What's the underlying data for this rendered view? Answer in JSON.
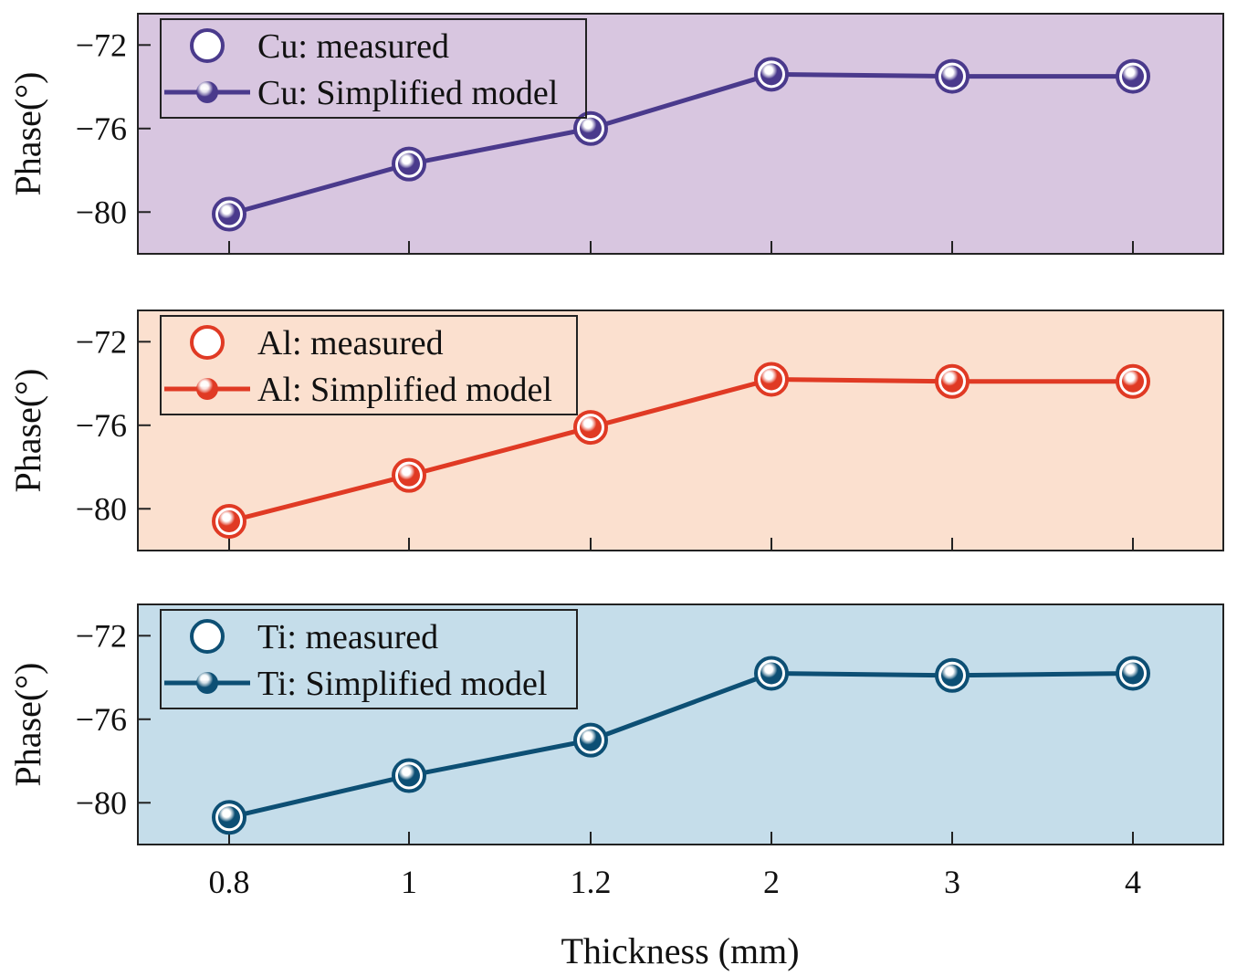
{
  "chart_data": {
    "type": "line",
    "x_axis": {
      "label": "Thickness (mm)",
      "categories": [
        "0.8",
        "1",
        "1.2",
        "2",
        "3",
        "4"
      ]
    },
    "y_axis": {
      "label": "Phase(°)",
      "ticks": [
        "−72",
        "−76",
        "−80"
      ],
      "tick_values": [
        -72,
        -76,
        -80
      ],
      "ylim": [
        -82,
        -70.5
      ]
    },
    "panels": [
      {
        "material": "Cu",
        "background": "#d8c6e0",
        "color": "#4a3a8c",
        "legend": [
          "Cu: measured",
          "Cu: Simplified model"
        ],
        "series": [
          {
            "name": "Cu: measured",
            "values": [
              -80.1,
              -77.7,
              -76.0,
              -73.4,
              -73.5,
              -73.5
            ]
          },
          {
            "name": "Cu: Simplified model",
            "values": [
              -80.1,
              -77.7,
              -76.0,
              -73.4,
              -73.5,
              -73.5
            ]
          }
        ]
      },
      {
        "material": "Al",
        "background": "#fbe0cf",
        "color": "#e03a24",
        "legend": [
          "Al: measured",
          "Al: Simplified model"
        ],
        "series": [
          {
            "name": "Al: measured",
            "values": [
              -80.6,
              -78.4,
              -76.1,
              -73.8,
              -73.9,
              -73.9
            ]
          },
          {
            "name": "Al: Simplified model",
            "values": [
              -80.6,
              -78.4,
              -76.1,
              -73.8,
              -73.9,
              -73.9
            ]
          }
        ]
      },
      {
        "material": "Ti",
        "background": "#c5ddea",
        "color": "#0d4f74",
        "legend": [
          "Ti: measured",
          "Ti: Simplified model"
        ],
        "series": [
          {
            "name": "Ti: measured",
            "values": [
              -80.7,
              -78.7,
              -77.0,
              -73.8,
              -73.9,
              -73.8
            ]
          },
          {
            "name": "Ti: Simplified model",
            "values": [
              -80.7,
              -78.7,
              -77.0,
              -73.8,
              -73.9,
              -73.8
            ]
          }
        ]
      }
    ]
  }
}
